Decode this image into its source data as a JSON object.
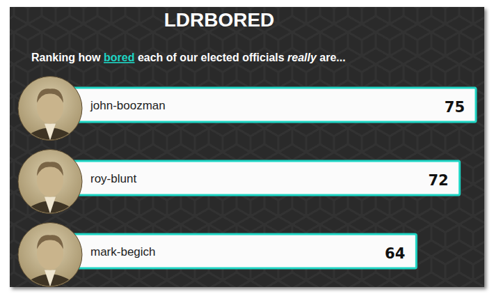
{
  "chart_data": {
    "type": "bar",
    "orientation": "horizontal",
    "title": "LDRBORED",
    "subtitle": [
      "Ranking how ",
      "bored",
      " each of our elected officials ",
      "really",
      " are..."
    ],
    "categories": [
      "john-boozman",
      "roy-blunt",
      "mark-begich"
    ],
    "values": [
      75,
      72,
      64
    ],
    "color": "#1ed5c4",
    "xlim": [
      0,
      75
    ],
    "tick_labels": false,
    "data_labels": true
  }
}
